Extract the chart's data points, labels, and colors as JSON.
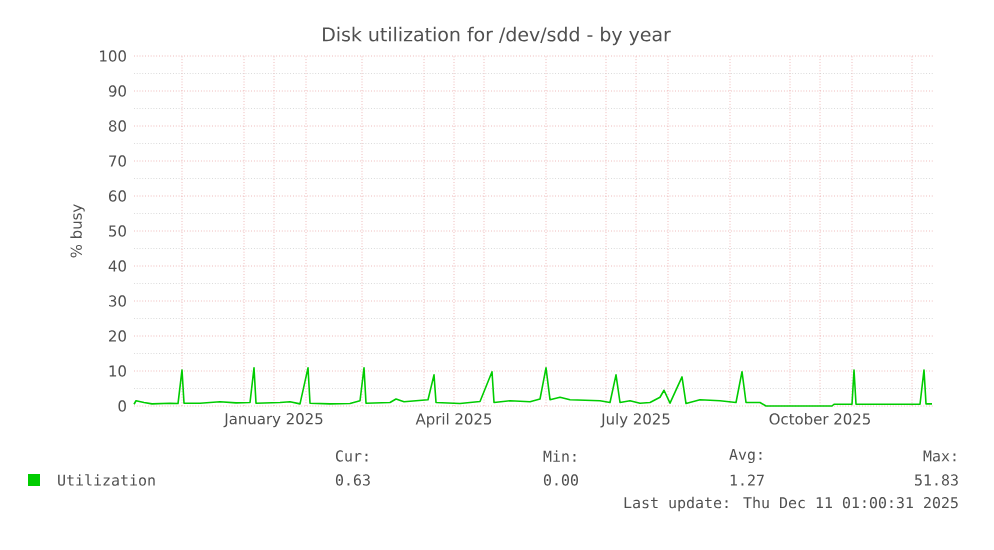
{
  "chart_data": {
    "type": "line",
    "title": "Disk utilization for /dev/sdd - by year",
    "ylabel": "% busy",
    "xlim": [
      "2024-11-07",
      "2025-12-12"
    ],
    "xticks": [
      {
        "value": "2024-12-01",
        "label": null
      },
      {
        "value": "2025-01-01",
        "label": null
      },
      {
        "value": "2025-01-16",
        "label": "January 2025"
      },
      {
        "value": "2025-02-01",
        "label": null
      },
      {
        "value": "2025-03-01",
        "label": null
      },
      {
        "value": "2025-04-01",
        "label": null
      },
      {
        "value": "2025-04-16",
        "label": "April 2025"
      },
      {
        "value": "2025-05-01",
        "label": null
      },
      {
        "value": "2025-06-01",
        "label": null
      },
      {
        "value": "2025-07-01",
        "label": null
      },
      {
        "value": "2025-07-16",
        "label": "July 2025"
      },
      {
        "value": "2025-08-01",
        "label": null
      },
      {
        "value": "2025-09-01",
        "label": null
      },
      {
        "value": "2025-10-01",
        "label": null
      },
      {
        "value": "2025-10-16",
        "label": "October 2025"
      },
      {
        "value": "2025-11-01",
        "label": null
      },
      {
        "value": "2025-12-01",
        "label": null
      }
    ],
    "ylim": [
      0,
      100
    ],
    "yticks": [
      0,
      10,
      20,
      30,
      40,
      50,
      60,
      70,
      80,
      90,
      100
    ],
    "grid": true,
    "legend": "bottom",
    "series": [
      {
        "name": "Utilization",
        "color": "#00cc00",
        "x": [
          "2024-11-07",
          "2024-11-08",
          "2024-11-12",
          "2024-11-16",
          "2024-11-25",
          "2024-11-29",
          "2024-12-01",
          "2024-12-02",
          "2024-12-10",
          "2024-12-20",
          "2024-12-28",
          "2025-01-04",
          "2025-01-06",
          "2025-01-07",
          "2025-01-19",
          "2025-01-24",
          "2025-01-29",
          "2025-02-02",
          "2025-02-03",
          "2025-02-13",
          "2025-02-23",
          "2025-02-28",
          "2025-03-02",
          "2025-03-03",
          "2025-03-15",
          "2025-03-18",
          "2025-03-22",
          "2025-04-03",
          "2025-04-06",
          "2025-04-07",
          "2025-04-19",
          "2025-04-29",
          "2025-05-05",
          "2025-05-06",
          "2025-05-14",
          "2025-05-24",
          "2025-05-29",
          "2025-06-01",
          "2025-06-03",
          "2025-06-08",
          "2025-06-13",
          "2025-06-28",
          "2025-07-03",
          "2025-07-06",
          "2025-07-08",
          "2025-07-13",
          "2025-07-18",
          "2025-07-23",
          "2025-07-28",
          "2025-07-30",
          "2025-08-02",
          "2025-08-08",
          "2025-08-10",
          "2025-08-17",
          "2025-08-27",
          "2025-09-04",
          "2025-09-07",
          "2025-09-09",
          "2025-09-16",
          "2025-09-19",
          "2025-10-22",
          "2025-10-23",
          "2025-11-01",
          "2025-11-02",
          "2025-11-03",
          "2025-12-05",
          "2025-12-07",
          "2025-12-08",
          "2025-12-11"
        ],
        "values": [
          0.5,
          1.5,
          1.0,
          0.6,
          0.8,
          0.7,
          10.3,
          0.8,
          0.8,
          1.2,
          0.9,
          1.0,
          10.9,
          0.8,
          1.0,
          1.2,
          0.6,
          10.9,
          0.8,
          0.6,
          0.7,
          1.5,
          10.9,
          0.8,
          1.0,
          2.0,
          1.2,
          1.8,
          8.9,
          1.0,
          0.7,
          1.3,
          9.8,
          1.0,
          1.5,
          1.2,
          2.0,
          10.9,
          1.8,
          2.5,
          1.8,
          1.5,
          1.0,
          8.9,
          1.0,
          1.5,
          0.8,
          1.0,
          2.5,
          4.5,
          0.8,
          8.3,
          0.7,
          1.8,
          1.5,
          1.0,
          9.8,
          1.0,
          1.0,
          0,
          0,
          0.5,
          0.5,
          10.3,
          0.5,
          0.5,
          10.3,
          0.6,
          0.6
        ]
      }
    ],
    "annotations": [
      "Cur:",
      "Min:",
      "Avg:",
      "Max:",
      "0.63",
      "0.00",
      "1.27",
      "51.83",
      "Last update: Thu Dec 11 01:00:31 2025"
    ]
  }
}
